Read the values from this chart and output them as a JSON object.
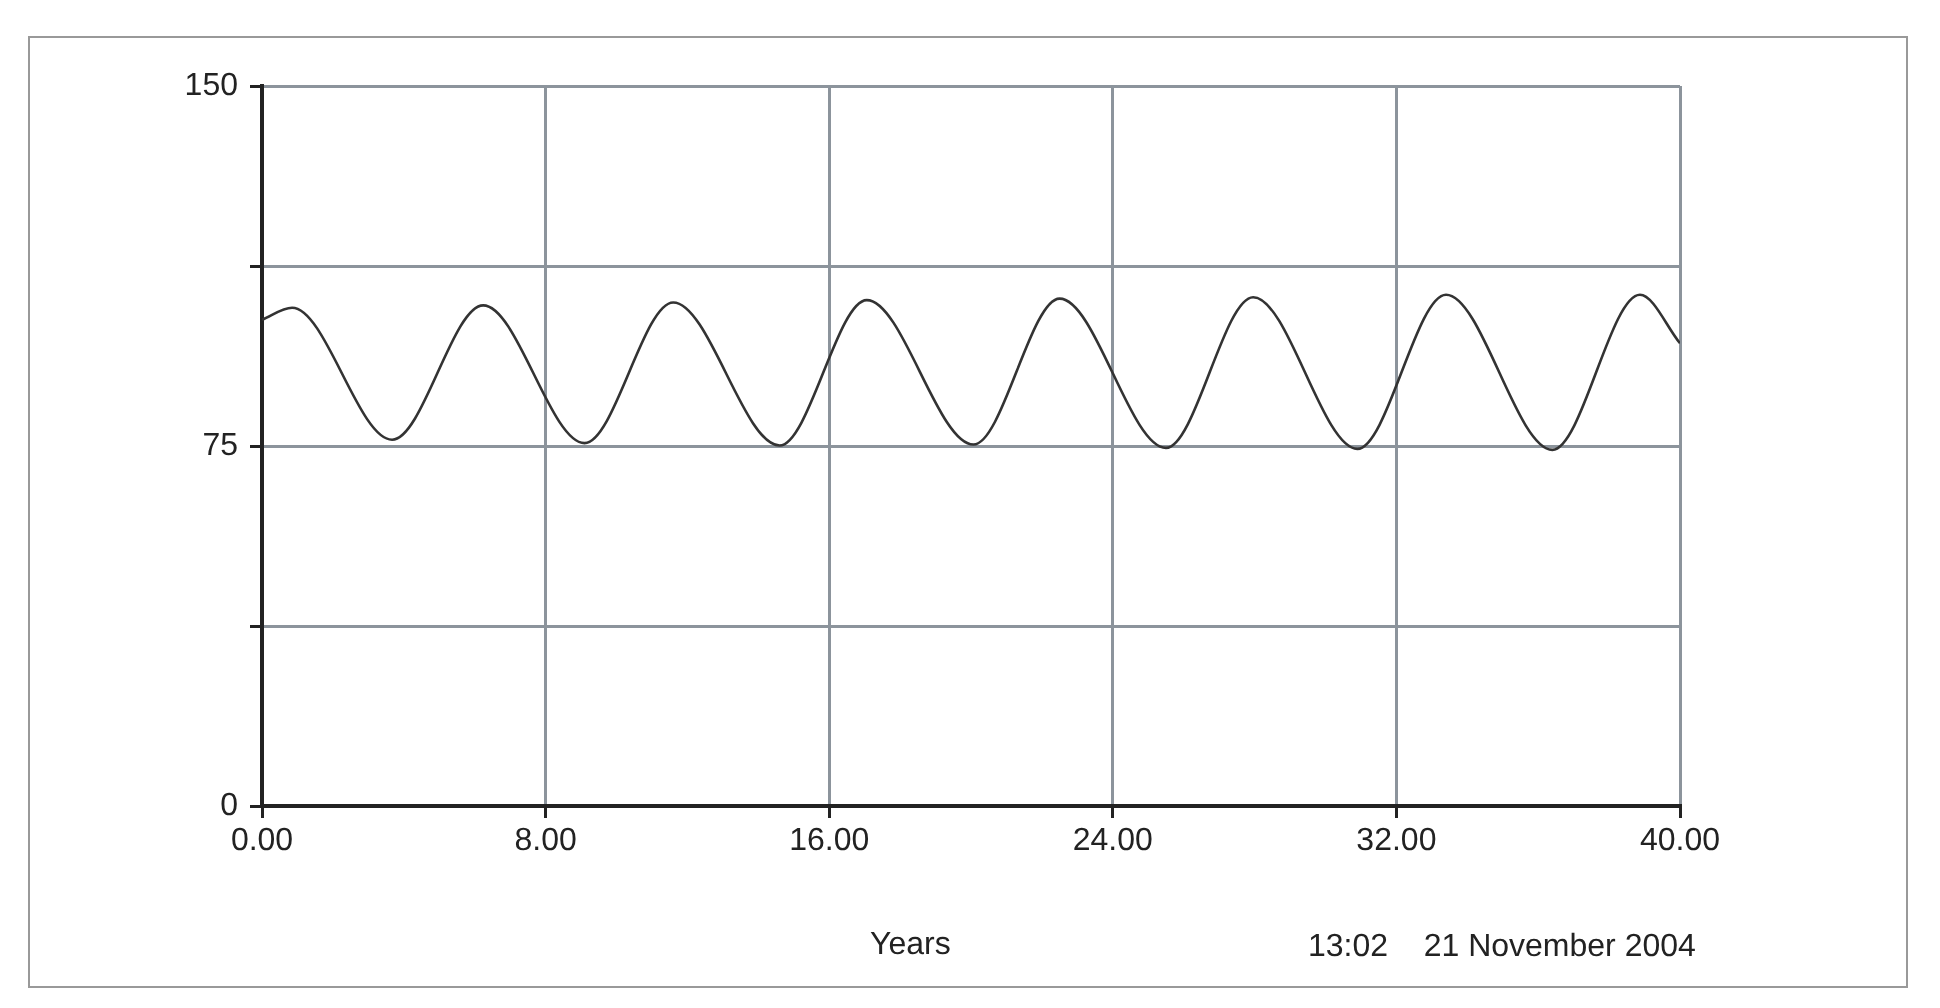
{
  "chart_data": {
    "type": "line",
    "xlabel": "Years",
    "annotations": [
      "13:02    21 November 2004"
    ],
    "x": [
      0,
      0.85,
      3.67,
      6.24,
      9.1,
      11.6,
      14.6,
      17.06,
      20.07,
      22.5,
      25.5,
      27.96,
      30.9,
      33.4,
      36.4,
      38.87,
      40
    ],
    "values": [
      101.3,
      103.8,
      76.3,
      104.3,
      75.6,
      104.9,
      75.1,
      105.4,
      75.3,
      105.7,
      74.6,
      106,
      74.4,
      106.5,
      74.2,
      106.5,
      96.4
    ],
    "color": "#333333",
    "xlim": [
      0,
      40
    ],
    "xticks": [
      {
        "value": 0,
        "label": "0.00"
      },
      {
        "value": 8,
        "label": "8.00"
      },
      {
        "value": 16,
        "label": "16.00"
      },
      {
        "value": 24,
        "label": "24.00"
      },
      {
        "value": 32,
        "label": "32.00"
      },
      {
        "value": 40,
        "label": "40.00"
      }
    ],
    "ylim": [
      0,
      150
    ],
    "yticks": [
      0,
      {
        "value": 37.5,
        "label": null
      },
      75,
      {
        "value": 112.5,
        "label": null
      },
      150
    ],
    "grid": true,
    "legend": false,
    "marker": "none",
    "line_style": "solid"
  }
}
